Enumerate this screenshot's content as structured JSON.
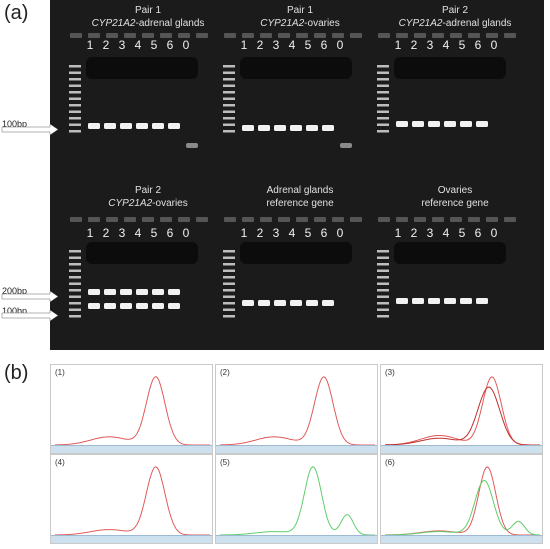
{
  "figure": {
    "panel_a_label": "(a)",
    "panel_b_label": "(b)"
  },
  "gel": {
    "groups": [
      {
        "title_line1": "Pair 1",
        "title_gene": "CYP21A2",
        "title_rest": "-adrenal glands",
        "lanes": [
          "1",
          "2",
          "3",
          "4",
          "5",
          "6",
          "0"
        ]
      },
      {
        "title_line1": "Pair 1",
        "title_gene": "CYP21A2",
        "title_rest": "-ovaries",
        "lanes": [
          "1",
          "2",
          "3",
          "4",
          "5",
          "6",
          "0"
        ]
      },
      {
        "title_line1": "Pair 2",
        "title_gene": "CYP21A2",
        "title_rest": "-adrenal glands",
        "lanes": [
          "1",
          "2",
          "3",
          "4",
          "5",
          "6",
          "0"
        ]
      },
      {
        "title_line1": "Pair 2",
        "title_gene": "CYP21A2",
        "title_rest": "-ovaries",
        "lanes": [
          "1",
          "2",
          "3",
          "4",
          "5",
          "6",
          "0"
        ]
      },
      {
        "title_line1": "Adrenal glands",
        "title_gene": "",
        "title_rest": "reference gene",
        "lanes": [
          "1",
          "2",
          "3",
          "4",
          "5",
          "6",
          "0"
        ]
      },
      {
        "title_line1": "Ovaries",
        "title_gene": "",
        "title_rest": "reference gene",
        "lanes": [
          "1",
          "2",
          "3",
          "4",
          "5",
          "6",
          "0"
        ]
      }
    ],
    "markers": {
      "top_100": "100bp",
      "bottom_200": "200bp",
      "bottom_100": "100bp"
    }
  },
  "melt_curves": {
    "panels": [
      {
        "label": "(1)",
        "colors": [
          "#e05a5a"
        ]
      },
      {
        "label": "(2)",
        "colors": [
          "#e05a5a"
        ]
      },
      {
        "label": "(3)",
        "colors": [
          "#e05a5a",
          "#c03030"
        ]
      },
      {
        "label": "(4)",
        "colors": [
          "#e05a5a"
        ]
      },
      {
        "label": "(5)",
        "colors": [
          "#5fcf6a"
        ]
      },
      {
        "label": "(6)",
        "colors": [
          "#e05a5a",
          "#5fcf6a"
        ]
      }
    ]
  }
}
